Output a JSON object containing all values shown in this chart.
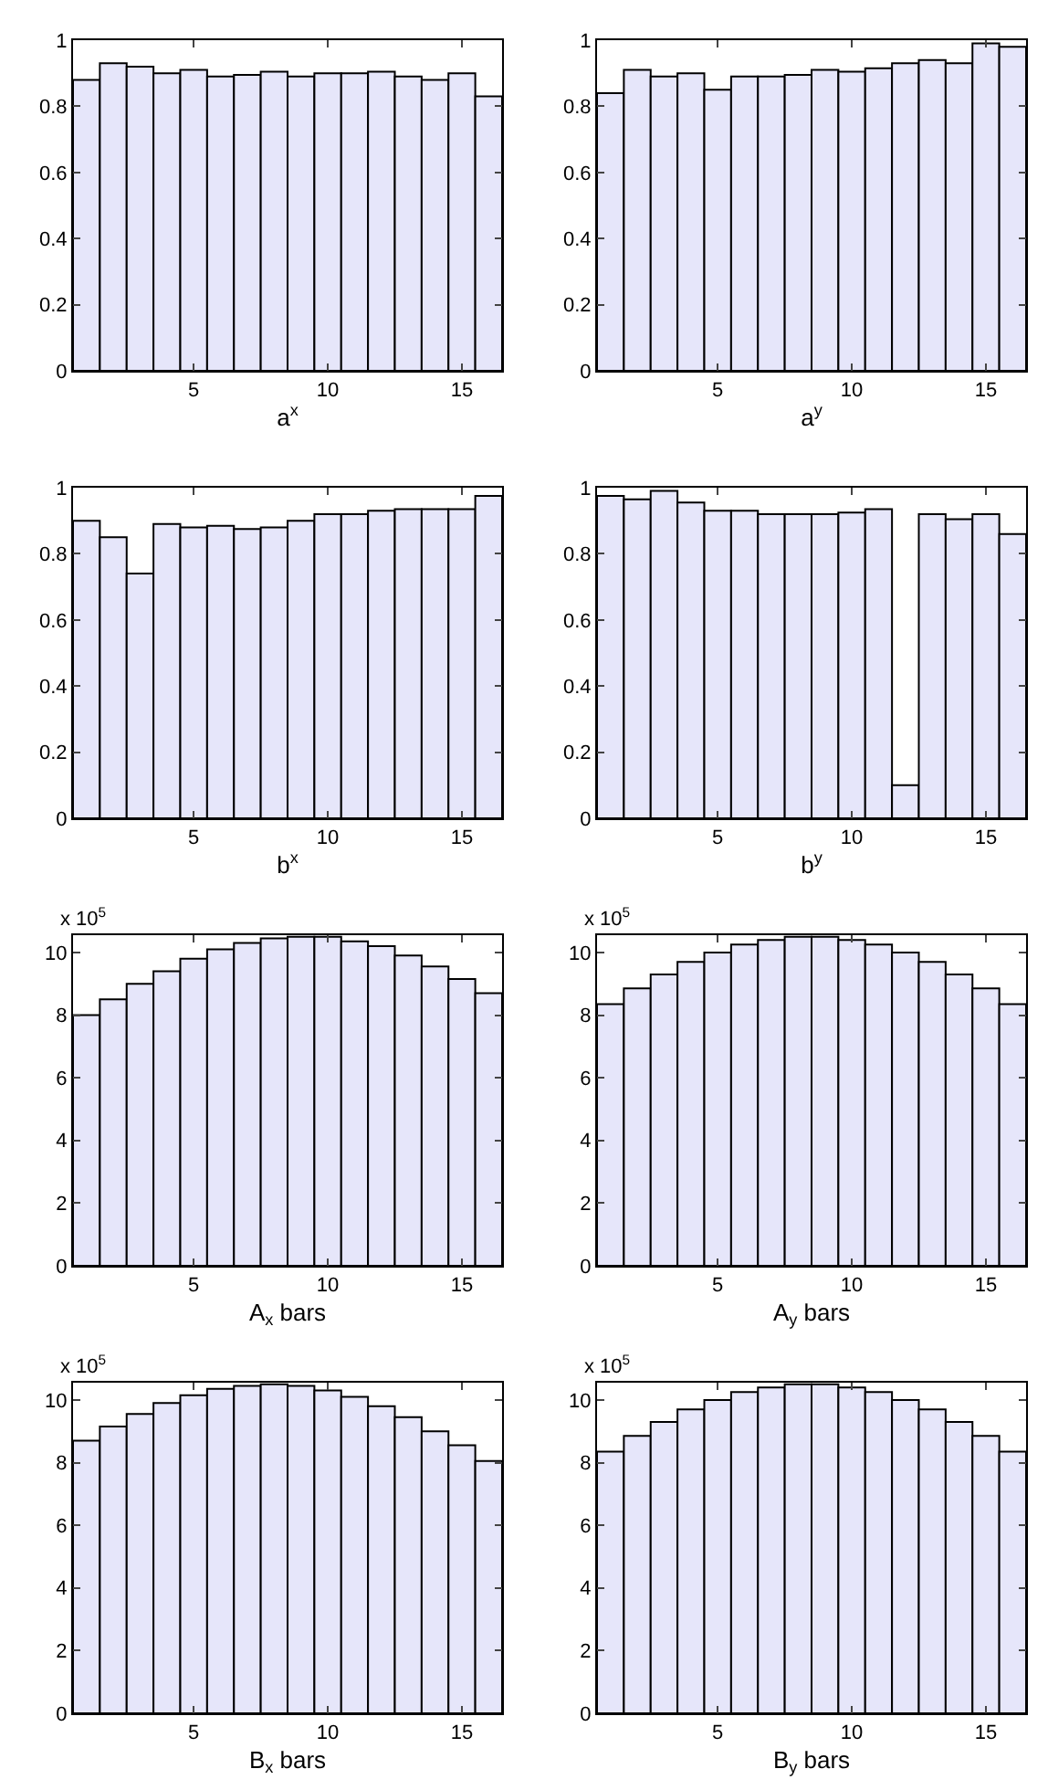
{
  "chart_data": [
    {
      "type": "bar",
      "xlabel": "a$^{x}$",
      "x": [
        1,
        2,
        3,
        4,
        5,
        6,
        7,
        8,
        9,
        10,
        11,
        12,
        13,
        14,
        15,
        16
      ],
      "values": [
        0.88,
        0.93,
        0.92,
        0.9,
        0.91,
        0.89,
        0.895,
        0.905,
        0.89,
        0.9,
        0.9,
        0.905,
        0.89,
        0.88,
        0.9,
        0.83
      ],
      "color": "#e6e6fa",
      "xlim": [
        0.5,
        16.5
      ],
      "xticks": [
        5,
        10,
        15
      ],
      "ylim": [
        0,
        1
      ],
      "yticks": [
        0,
        0.2,
        0.4,
        0.6,
        0.8,
        1
      ],
      "grid": false
    },
    {
      "type": "bar",
      "xlabel": "a$^{y}$",
      "x": [
        1,
        2,
        3,
        4,
        5,
        6,
        7,
        8,
        9,
        10,
        11,
        12,
        13,
        14,
        15,
        16
      ],
      "values": [
        0.84,
        0.91,
        0.89,
        0.9,
        0.85,
        0.89,
        0.89,
        0.895,
        0.91,
        0.905,
        0.915,
        0.93,
        0.94,
        0.93,
        0.99,
        0.98
      ],
      "color": "#e6e6fa",
      "xlim": [
        0.5,
        16.5
      ],
      "xticks": [
        5,
        10,
        15
      ],
      "ylim": [
        0,
        1
      ],
      "yticks": [
        0,
        0.2,
        0.4,
        0.6,
        0.8,
        1
      ],
      "grid": false
    },
    {
      "type": "bar",
      "xlabel": "b$^{x}$",
      "x": [
        1,
        2,
        3,
        4,
        5,
        6,
        7,
        8,
        9,
        10,
        11,
        12,
        13,
        14,
        15,
        16
      ],
      "values": [
        0.9,
        0.85,
        0.74,
        0.89,
        0.88,
        0.885,
        0.875,
        0.88,
        0.9,
        0.92,
        0.92,
        0.93,
        0.935,
        0.935,
        0.935,
        0.975
      ],
      "color": "#e6e6fa",
      "xlim": [
        0.5,
        16.5
      ],
      "xticks": [
        5,
        10,
        15
      ],
      "ylim": [
        0,
        1
      ],
      "yticks": [
        0,
        0.2,
        0.4,
        0.6,
        0.8,
        1
      ],
      "grid": false
    },
    {
      "type": "bar",
      "xlabel": "b$^{y}$",
      "x": [
        1,
        2,
        3,
        4,
        5,
        6,
        7,
        8,
        9,
        10,
        11,
        12,
        13,
        14,
        15,
        16
      ],
      "values": [
        0.975,
        0.965,
        0.99,
        0.955,
        0.93,
        0.93,
        0.92,
        0.92,
        0.92,
        0.925,
        0.935,
        0.1,
        0.92,
        0.905,
        0.92,
        0.86
      ],
      "color": "#e6e6fa",
      "xlim": [
        0.5,
        16.5
      ],
      "xticks": [
        5,
        10,
        15
      ],
      "ylim": [
        0,
        1
      ],
      "yticks": [
        0,
        0.2,
        0.4,
        0.6,
        0.8,
        1
      ],
      "grid": false
    },
    {
      "type": "bar",
      "xlabel": "A$_{x}$ bars",
      "annotations": [
        "x 10$^{5}$"
      ],
      "x": [
        1,
        2,
        3,
        4,
        5,
        6,
        7,
        8,
        9,
        10,
        11,
        12,
        13,
        14,
        15,
        16
      ],
      "values": [
        8.0,
        8.5,
        9.0,
        9.4,
        9.8,
        10.1,
        10.3,
        10.45,
        10.5,
        10.5,
        10.35,
        10.2,
        9.9,
        9.55,
        9.15,
        8.7
      ],
      "color": "#e6e6fa",
      "xlim": [
        0.5,
        16.5
      ],
      "xticks": [
        5,
        10,
        15
      ],
      "ylim": [
        0,
        10.55
      ],
      "yticks": [
        0,
        2,
        4,
        6,
        8,
        10
      ],
      "grid": false
    },
    {
      "type": "bar",
      "xlabel": "A$_{y}$ bars",
      "annotations": [
        "x 10$^{5}$"
      ],
      "x": [
        1,
        2,
        3,
        4,
        5,
        6,
        7,
        8,
        9,
        10,
        11,
        12,
        13,
        14,
        15,
        16
      ],
      "values": [
        8.35,
        8.85,
        9.3,
        9.7,
        10.0,
        10.25,
        10.4,
        10.5,
        10.5,
        10.4,
        10.25,
        10.0,
        9.7,
        9.3,
        8.85,
        8.35
      ],
      "color": "#e6e6fa",
      "xlim": [
        0.5,
        16.5
      ],
      "xticks": [
        5,
        10,
        15
      ],
      "ylim": [
        0,
        10.55
      ],
      "yticks": [
        0,
        2,
        4,
        6,
        8,
        10
      ],
      "grid": false
    },
    {
      "type": "bar",
      "xlabel": "B$_{x}$ bars",
      "annotations": [
        "x 10$^{5}$"
      ],
      "x": [
        1,
        2,
        3,
        4,
        5,
        6,
        7,
        8,
        9,
        10,
        11,
        12,
        13,
        14,
        15,
        16
      ],
      "values": [
        8.7,
        9.15,
        9.55,
        9.9,
        10.15,
        10.35,
        10.45,
        10.5,
        10.45,
        10.3,
        10.1,
        9.8,
        9.45,
        9.0,
        8.55,
        8.05
      ],
      "color": "#e6e6fa",
      "xlim": [
        0.5,
        16.5
      ],
      "xticks": [
        5,
        10,
        15
      ],
      "ylim": [
        0,
        10.55
      ],
      "yticks": [
        0,
        2,
        4,
        6,
        8,
        10
      ],
      "grid": false
    },
    {
      "type": "bar",
      "xlabel": "B$_{y}$ bars",
      "annotations": [
        "x 10$^{5}$"
      ],
      "x": [
        1,
        2,
        3,
        4,
        5,
        6,
        7,
        8,
        9,
        10,
        11,
        12,
        13,
        14,
        15,
        16
      ],
      "values": [
        8.35,
        8.85,
        9.3,
        9.7,
        10.0,
        10.25,
        10.4,
        10.5,
        10.5,
        10.4,
        10.25,
        10.0,
        9.7,
        9.3,
        8.85,
        8.35
      ],
      "color": "#e6e6fa",
      "xlim": [
        0.5,
        16.5
      ],
      "xticks": [
        5,
        10,
        15
      ],
      "ylim": [
        0,
        10.55
      ],
      "yticks": [
        0,
        2,
        4,
        6,
        8,
        10
      ],
      "grid": false
    }
  ]
}
